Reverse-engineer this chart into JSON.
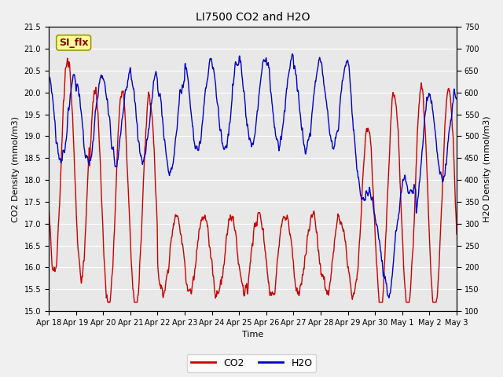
{
  "title": "LI7500 CO2 and H2O",
  "xlabel": "Time",
  "ylabel_left": "CO2 Density (mmol/m3)",
  "ylabel_right": "H2O Density (mmol/m3)",
  "ylim_left": [
    15.0,
    21.5
  ],
  "ylim_right": [
    100,
    750
  ],
  "yticks_left": [
    15.0,
    15.5,
    16.0,
    16.5,
    17.0,
    17.5,
    18.0,
    18.5,
    19.0,
    19.5,
    20.0,
    20.5,
    21.0,
    21.5
  ],
  "yticks_right": [
    100,
    150,
    200,
    250,
    300,
    350,
    400,
    450,
    500,
    550,
    600,
    650,
    700,
    750
  ],
  "xtick_labels": [
    "Apr 18",
    "Apr 19",
    "Apr 20",
    "Apr 21",
    "Apr 22",
    "Apr 23",
    "Apr 24",
    "Apr 25",
    "Apr 26",
    "Apr 27",
    "Apr 28",
    "Apr 29",
    "Apr 30",
    "May 1",
    "May 2",
    "May 3"
  ],
  "color_co2": "#cc0000",
  "color_h2o": "#0000cc",
  "fig_bg_color": "#f0f0f0",
  "plot_bg_color": "#e8e8e8",
  "legend_labels": [
    "CO2",
    "H2O"
  ],
  "annotation_text": "SI_flx",
  "annotation_bg": "#ffff99",
  "annotation_border": "#999900",
  "grid_color": "white",
  "linewidth": 1.0,
  "title_fontsize": 10,
  "axis_fontsize": 8,
  "tick_fontsize": 7
}
